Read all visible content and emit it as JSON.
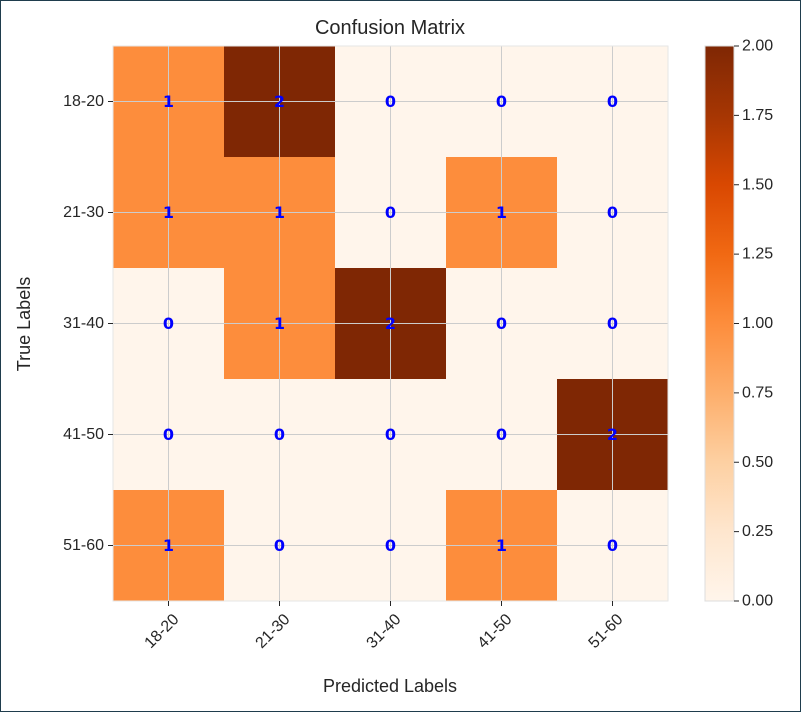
{
  "chart_data": {
    "type": "heatmap",
    "title": "Confusion Matrix",
    "xlabel": "Predicted Labels",
    "ylabel": "True Labels",
    "x_categories": [
      "18-20",
      "21-30",
      "31-40",
      "41-50",
      "51-60"
    ],
    "y_categories": [
      "18-20",
      "21-30",
      "31-40",
      "41-50",
      "51-60"
    ],
    "values": [
      [
        1,
        2,
        0,
        0,
        0
      ],
      [
        1,
        1,
        0,
        1,
        0
      ],
      [
        0,
        1,
        2,
        0,
        0
      ],
      [
        0,
        0,
        0,
        0,
        2
      ],
      [
        1,
        0,
        0,
        1,
        0
      ]
    ],
    "colormap": "Oranges",
    "color_range": [
      0,
      2
    ],
    "colorbar_ticks": [
      "0.00",
      "0.25",
      "0.50",
      "0.75",
      "1.00",
      "1.25",
      "1.50",
      "1.75",
      "2.00"
    ],
    "colors": {
      "low": "#fff5eb",
      "mid": "#fd8d3c",
      "high": "#7f2704",
      "annotation": "#0000ff",
      "grid": "#cccccc"
    },
    "grid": true,
    "x_tick_rotation_deg": 45
  }
}
